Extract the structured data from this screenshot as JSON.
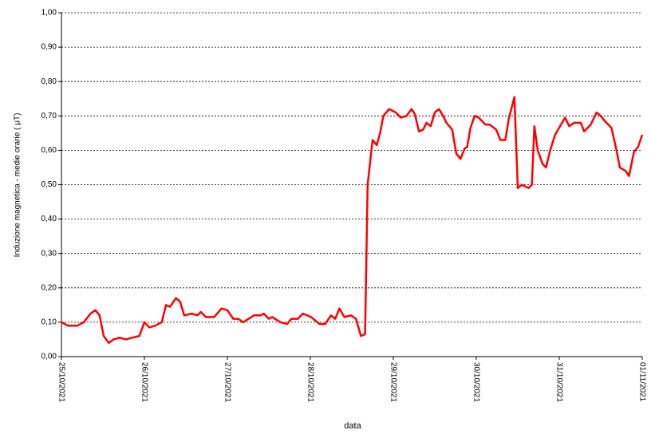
{
  "chart_data": {
    "type": "line",
    "x_label": "data",
    "y_label": "Induzione magnetica - medie orarie ( μT)",
    "x": [
      0,
      0.08,
      0.19,
      0.27,
      0.35,
      0.41,
      0.46,
      0.51,
      0.57,
      0.63,
      0.7,
      0.78,
      0.85,
      0.94,
      1.0,
      1.06,
      1.13,
      1.21,
      1.26,
      1.31,
      1.38,
      1.43,
      1.48,
      1.57,
      1.64,
      1.68,
      1.74,
      1.84,
      1.93,
      2.0,
      2.07,
      2.13,
      2.19,
      2.32,
      2.4,
      2.44,
      2.5,
      2.54,
      2.64,
      2.72,
      2.77,
      2.85,
      2.91,
      3.01,
      3.11,
      3.18,
      3.25,
      3.3,
      3.35,
      3.41,
      3.49,
      3.55,
      3.61,
      3.66,
      3.69,
      3.75,
      3.8,
      3.84,
      3.88,
      3.95,
      4.03,
      4.09,
      4.16,
      4.22,
      4.26,
      4.31,
      4.36,
      4.4,
      4.45,
      4.5,
      4.55,
      4.6,
      4.64,
      4.71,
      4.76,
      4.81,
      4.86,
      4.89,
      4.93,
      4.98,
      5.03,
      5.11,
      5.16,
      5.24,
      5.29,
      5.35,
      5.39,
      5.46,
      5.5,
      5.55,
      5.63,
      5.67,
      5.7,
      5.74,
      5.8,
      5.84,
      5.89,
      5.95,
      6.01,
      6.07,
      6.12,
      6.18,
      6.26,
      6.3,
      6.38,
      6.45,
      6.5,
      6.55,
      6.63,
      6.69,
      6.73,
      6.8,
      6.84,
      6.9,
      6.95,
      7.0
    ],
    "series": [
      {
        "color": "#ff0000",
        "values": [
          0.1,
          0.09,
          0.09,
          0.1,
          0.125,
          0.135,
          0.12,
          0.06,
          0.04,
          0.05,
          0.055,
          0.05,
          0.055,
          0.06,
          0.1,
          0.085,
          0.09,
          0.1,
          0.15,
          0.145,
          0.17,
          0.16,
          0.12,
          0.125,
          0.12,
          0.13,
          0.115,
          0.115,
          0.14,
          0.135,
          0.11,
          0.11,
          0.1,
          0.12,
          0.12,
          0.125,
          0.11,
          0.115,
          0.1,
          0.095,
          0.11,
          0.11,
          0.125,
          0.115,
          0.095,
          0.095,
          0.12,
          0.11,
          0.14,
          0.115,
          0.12,
          0.11,
          0.06,
          0.065,
          0.5,
          0.63,
          0.615,
          0.65,
          0.7,
          0.72,
          0.71,
          0.695,
          0.7,
          0.72,
          0.705,
          0.655,
          0.66,
          0.68,
          0.67,
          0.71,
          0.72,
          0.7,
          0.68,
          0.66,
          0.59,
          0.575,
          0.605,
          0.61,
          0.665,
          0.7,
          0.695,
          0.675,
          0.675,
          0.66,
          0.63,
          0.63,
          0.69,
          0.755,
          0.49,
          0.5,
          0.49,
          0.5,
          0.67,
          0.6,
          0.56,
          0.55,
          0.6,
          0.645,
          0.67,
          0.695,
          0.67,
          0.68,
          0.68,
          0.655,
          0.675,
          0.71,
          0.7,
          0.685,
          0.665,
          0.6,
          0.55,
          0.54,
          0.525,
          0.595,
          0.61,
          0.645
        ]
      }
    ],
    "xlim": [
      0,
      7
    ],
    "xticks": [
      {
        "value": 0,
        "label": "25/10/2021"
      },
      {
        "value": 1,
        "label": "26/10/2021"
      },
      {
        "value": 2,
        "label": "27/10/2021"
      },
      {
        "value": 3,
        "label": "28/10/2021"
      },
      {
        "value": 4,
        "label": "29/10/2021"
      },
      {
        "value": 5,
        "label": "30/10/2021"
      },
      {
        "value": 6,
        "label": "31/10/2021"
      },
      {
        "value": 7,
        "label": "01/11/2021"
      }
    ],
    "ylim": [
      0,
      1
    ],
    "yticks": [
      {
        "value": 0,
        "label": "0,00"
      },
      {
        "value": 0.1,
        "label": "0,10"
      },
      {
        "value": 0.2,
        "label": "0,20"
      },
      {
        "value": 0.3,
        "label": "0,30"
      },
      {
        "value": 0.4,
        "label": "0,40"
      },
      {
        "value": 0.5,
        "label": "0,50"
      },
      {
        "value": 0.6,
        "label": "0,60"
      },
      {
        "value": 0.7,
        "label": "0,70"
      },
      {
        "value": 0.8,
        "label": "0,80"
      },
      {
        "value": 0.9,
        "label": "0,90"
      },
      {
        "value": 1,
        "label": "1,00"
      }
    ],
    "grid": true
  }
}
